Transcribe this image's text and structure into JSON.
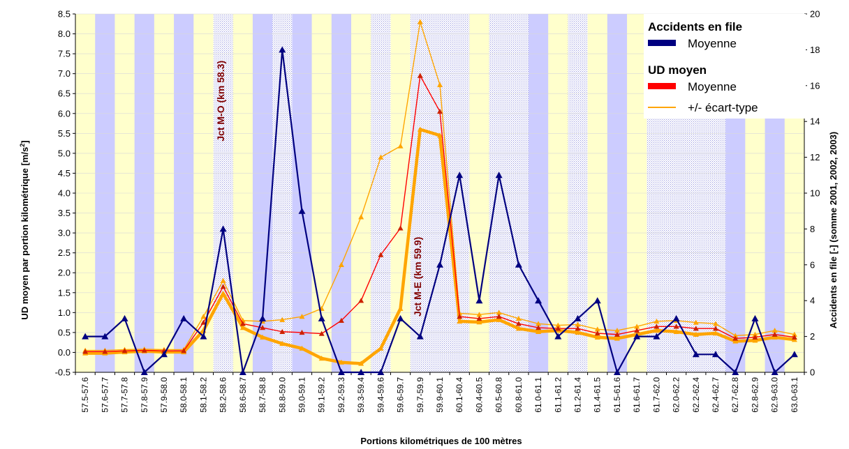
{
  "chart_data": {
    "type": "line",
    "xlabel": "Portions kilométriques de 100 mètres",
    "ylabel_left": "UD moyen par portion kilométrique [m/s",
    "ylabel_left_sup": "2",
    "ylabel_left_end": "]",
    "ylabel_right": "Accidents en file [-] (somme 2001, 2002, 2003)",
    "y_left_lim": [
      -0.5,
      8.5
    ],
    "y_left_ticks": [
      "-0.5",
      "0.0",
      "0.5",
      "1.0",
      "1.5",
      "2.0",
      "2.5",
      "3.0",
      "3.5",
      "4.0",
      "4.5",
      "5.0",
      "5.5",
      "6.0",
      "6.5",
      "7.0",
      "7.5",
      "8.0",
      "8.5"
    ],
    "y_right_lim": [
      0,
      20
    ],
    "y_right_ticks": [
      "0",
      "2",
      "4",
      "6",
      "8",
      "10",
      "12",
      "14",
      "16",
      "18",
      "20"
    ],
    "categories": [
      "57.5-57.6",
      "57.6-57.7",
      "57.7-57.8",
      "57.8-57.9",
      "57.9-58.0",
      "58.0-58.1",
      "58.1-58.2",
      "58.2-58.6",
      "58.6-58.7",
      "58.7-58.8",
      "58.8-59.0",
      "59.0-59.1",
      "59.1-59.2",
      "59.2-59.3",
      "59.3-59.4",
      "59.4-59.6",
      "59.6-59.7",
      "59.7-59.9",
      "59.9-60.1",
      "60.1-60.4",
      "60.4-60.5",
      "60.5-60.8",
      "60.8-61.0",
      "61.0-61.1",
      "61.1-61.2",
      "61.2-61.4",
      "61.4-61.5",
      "61.5-61.6",
      "61.6-61.7",
      "61.7-62.0",
      "62.0-62.2",
      "62.2-62.4",
      "62.4-62.7",
      "62.7-62.8",
      "62.8-62.9",
      "62.9-63.0",
      "63.0-63.1"
    ],
    "band_types": [
      "y",
      "b",
      "y",
      "b",
      "y",
      "b",
      "y",
      "d",
      "y",
      "b",
      "d",
      "b",
      "y",
      "b",
      "y",
      "d",
      "y",
      "d",
      "d",
      "d",
      "y",
      "d",
      "d",
      "b",
      "y",
      "d",
      "y",
      "b",
      "y",
      "d",
      "d",
      "d",
      "d",
      "b",
      "y",
      "b",
      "y"
    ],
    "band_colors": {
      "y": "#ffffcc",
      "b": "#ccccff",
      "d": "#dcdcf4"
    },
    "annotations": [
      {
        "text": "Jct M-O (km 58.3)",
        "x_index": 7.55,
        "y_value": 5.3,
        "color": "#800000"
      },
      {
        "text": "Jct M-E (km 59.9)",
        "x_index": 17.55,
        "y_value": 0.9,
        "color": "#800000"
      }
    ],
    "legend": {
      "position": "top-right",
      "group1_title": "Accidents en file",
      "group1_item": "Moyenne",
      "group2_title": "UD moyen",
      "group2_item1": "Moyenne",
      "group2_item2": "+/- écart-type"
    },
    "series": [
      {
        "name": "Accidents en file - Moyenne",
        "axis": "right",
        "color": "#000080",
        "values": [
          2,
          2,
          3,
          0,
          1,
          3,
          2,
          8,
          0,
          3,
          18,
          9,
          3,
          0,
          0,
          0,
          3,
          2,
          6,
          11,
          4,
          11,
          6,
          4,
          2,
          3,
          4,
          0,
          2,
          2,
          3,
          1,
          1,
          0,
          3,
          0,
          1
        ]
      },
      {
        "name": "UD moyen - Moyenne",
        "axis": "left",
        "color": "#ff0000",
        "values": [
          0.02,
          0.02,
          0.04,
          0.05,
          0.04,
          0.04,
          0.75,
          1.65,
          0.72,
          0.62,
          0.52,
          0.5,
          0.47,
          0.8,
          1.3,
          2.45,
          3.12,
          6.95,
          6.05,
          0.9,
          0.85,
          0.9,
          0.72,
          0.62,
          0.6,
          0.6,
          0.48,
          0.45,
          0.55,
          0.65,
          0.65,
          0.6,
          0.6,
          0.35,
          0.38,
          0.45,
          0.38
        ]
      },
      {
        "name": "UD moyen - +/- écart-type (sup)",
        "axis": "left",
        "color": "#ffa500",
        "values": [
          0.05,
          0.05,
          0.07,
          0.08,
          0.07,
          0.07,
          0.9,
          1.8,
          0.8,
          0.78,
          0.82,
          0.9,
          1.1,
          2.2,
          3.4,
          4.9,
          5.18,
          8.3,
          6.72,
          0.98,
          0.95,
          1.0,
          0.85,
          0.72,
          0.68,
          0.7,
          0.58,
          0.55,
          0.65,
          0.78,
          0.8,
          0.75,
          0.72,
          0.42,
          0.45,
          0.55,
          0.45
        ]
      },
      {
        "name": "UD moyen - +/- écart-type (inf)",
        "axis": "left",
        "color": "#ffa500",
        "values": [
          -0.02,
          -0.02,
          0.01,
          0.03,
          0.01,
          0.01,
          0.55,
          1.48,
          0.62,
          0.38,
          0.22,
          0.1,
          -0.15,
          -0.25,
          -0.28,
          0.1,
          1.1,
          5.6,
          5.45,
          0.78,
          0.76,
          0.82,
          0.6,
          0.52,
          0.55,
          0.5,
          0.38,
          0.35,
          0.45,
          0.55,
          0.52,
          0.45,
          0.48,
          0.28,
          0.3,
          0.38,
          0.32
        ]
      }
    ]
  }
}
